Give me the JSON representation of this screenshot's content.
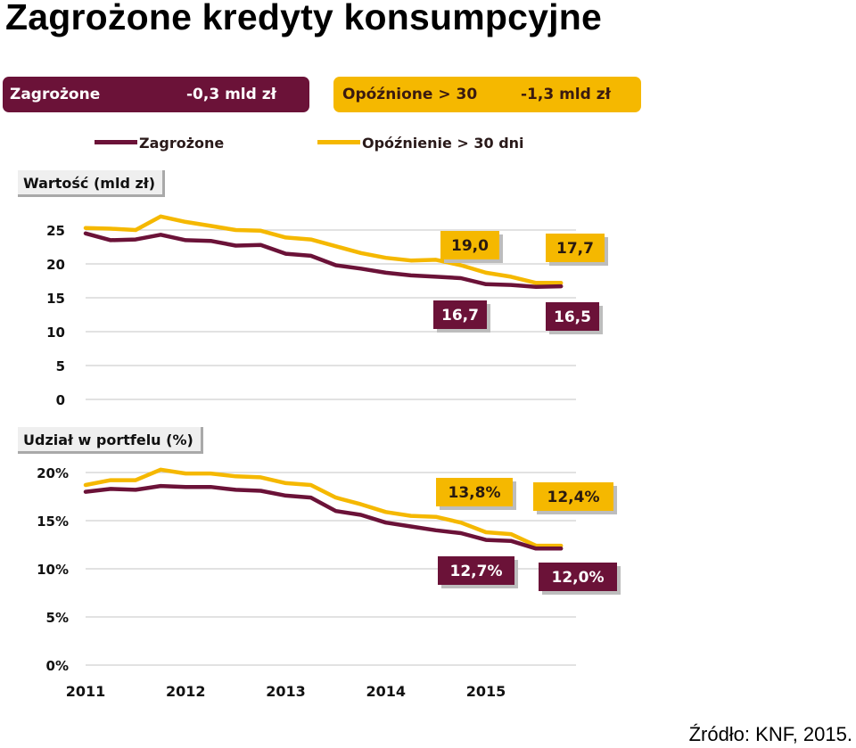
{
  "title": "Zagrożone kredyty konsumpcyjne",
  "summary": {
    "zagrozone": {
      "label": "Zagrożone",
      "value": "-0,3 mld zł"
    },
    "opoznione": {
      "label": "Opóźnione > 30",
      "value": "-1,3 mld zł"
    }
  },
  "legend": {
    "series1": "Zagrożone",
    "series2": "Opóźnienie > 30 dni"
  },
  "source": "Źródło: KNF, 2015.",
  "colors": {
    "zagrozone": "#6b1238",
    "opoznienie": "#f5b800",
    "grid": "#d0d0d0"
  },
  "chart_data": [
    {
      "type": "line",
      "title": "Wartość (mld zł)",
      "ylim": [
        0,
        25
      ],
      "yticks": [
        "0",
        "5",
        "10",
        "15",
        "20",
        "25"
      ],
      "grid": true,
      "legend_placement": "top",
      "x": [
        2011.0,
        2011.25,
        2011.5,
        2011.75,
        2012.0,
        2012.25,
        2012.5,
        2012.75,
        2013.0,
        2013.25,
        2013.5,
        2013.75,
        2014.0,
        2014.25,
        2014.5,
        2014.75,
        2015.0,
        2015.25,
        2015.5,
        2015.75
      ],
      "series": [
        {
          "name": "Zagrożone",
          "color": "#6b1238",
          "values": [
            24.5,
            23.5,
            23.6,
            24.3,
            23.5,
            23.4,
            22.7,
            22.8,
            21.5,
            21.2,
            19.8,
            19.3,
            18.7,
            18.3,
            18.1,
            17.9,
            17.0,
            16.9,
            16.6,
            16.7
          ]
        },
        {
          "name": "Opóźnienie > 30 dni",
          "color": "#f5b800",
          "values": [
            25.3,
            25.2,
            25.0,
            27.0,
            26.2,
            25.6,
            25.0,
            24.9,
            23.9,
            23.6,
            22.6,
            21.6,
            20.9,
            20.5,
            20.6,
            19.8,
            18.7,
            18.1,
            17.2,
            17.2
          ]
        }
      ],
      "annotations": [
        {
          "text": "19,0",
          "series": "Opóźnienie > 30 dni"
        },
        {
          "text": "17,7",
          "series": "Opóźnienie > 30 dni"
        },
        {
          "text": "16,7",
          "series": "Zagrożone"
        },
        {
          "text": "16,5",
          "series": "Zagrożone"
        }
      ]
    },
    {
      "type": "line",
      "title": "Udział w portfelu (%)",
      "ylim": [
        0,
        20
      ],
      "yticks": [
        "0%",
        "5%",
        "10%",
        "15%",
        "20%"
      ],
      "xticks": [
        "2011",
        "2012",
        "2013",
        "2014",
        "2015"
      ],
      "grid": true,
      "x": [
        2011.0,
        2011.25,
        2011.5,
        2011.75,
        2012.0,
        2012.25,
        2012.5,
        2012.75,
        2013.0,
        2013.25,
        2013.5,
        2013.75,
        2014.0,
        2014.25,
        2014.5,
        2014.75,
        2015.0,
        2015.25,
        2015.5,
        2015.75
      ],
      "series": [
        {
          "name": "Zagrożone",
          "color": "#6b1238",
          "values": [
            18.0,
            18.3,
            18.2,
            18.6,
            18.5,
            18.5,
            18.2,
            18.1,
            17.6,
            17.4,
            16.0,
            15.6,
            14.8,
            14.4,
            14.0,
            13.7,
            13.0,
            12.9,
            12.1,
            12.1
          ]
        },
        {
          "name": "Opóźnienie > 30 dni",
          "color": "#f5b800",
          "values": [
            18.7,
            19.2,
            19.2,
            20.3,
            19.9,
            19.9,
            19.6,
            19.5,
            18.9,
            18.7,
            17.4,
            16.7,
            15.9,
            15.5,
            15.4,
            14.8,
            13.8,
            13.6,
            12.4,
            12.4
          ]
        }
      ],
      "annotations": [
        {
          "text": "13,8%",
          "series": "Opóźnienie > 30 dni"
        },
        {
          "text": "12,4%",
          "series": "Opóźnienie > 30 dni"
        },
        {
          "text": "12,7%",
          "series": "Zagrożone"
        },
        {
          "text": "12,0%",
          "series": "Zagrożone"
        }
      ]
    }
  ]
}
